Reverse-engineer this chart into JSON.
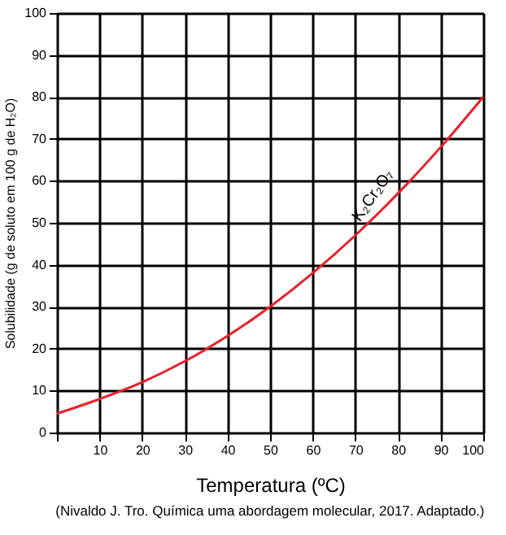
{
  "chart_data": {
    "type": "line",
    "xlabel": "Temperatura (ºC)",
    "ylabel": "Solubilidade (g de soluto em 100 g de H₂O)",
    "x": [
      0,
      10,
      20,
      30,
      40,
      50,
      60,
      70,
      80,
      90,
      100
    ],
    "series": [
      {
        "color": "#e8202a",
        "values": [
          4.5,
          8,
          12,
          17,
          23,
          30,
          38,
          47,
          57,
          68,
          80
        ]
      }
    ],
    "xlim": [
      0,
      100
    ],
    "ylim": [
      0,
      100
    ],
    "xticks": [
      {
        "value": 0,
        "label": null
      },
      10,
      20,
      30,
      40,
      50,
      60,
      70,
      80,
      90,
      100
    ],
    "yticks": [
      0,
      10,
      20,
      30,
      40,
      50,
      60,
      70,
      80,
      90,
      100
    ],
    "grid": true,
    "marker": "none",
    "line_style": "solid",
    "annotations": [
      {
        "text": "K₂Cr₂O₇",
        "x": 80,
        "y": 57
      },
      "(Nivaldo J. Tro. Química uma abordagem molecular, 2017. Adaptado.)"
    ]
  }
}
